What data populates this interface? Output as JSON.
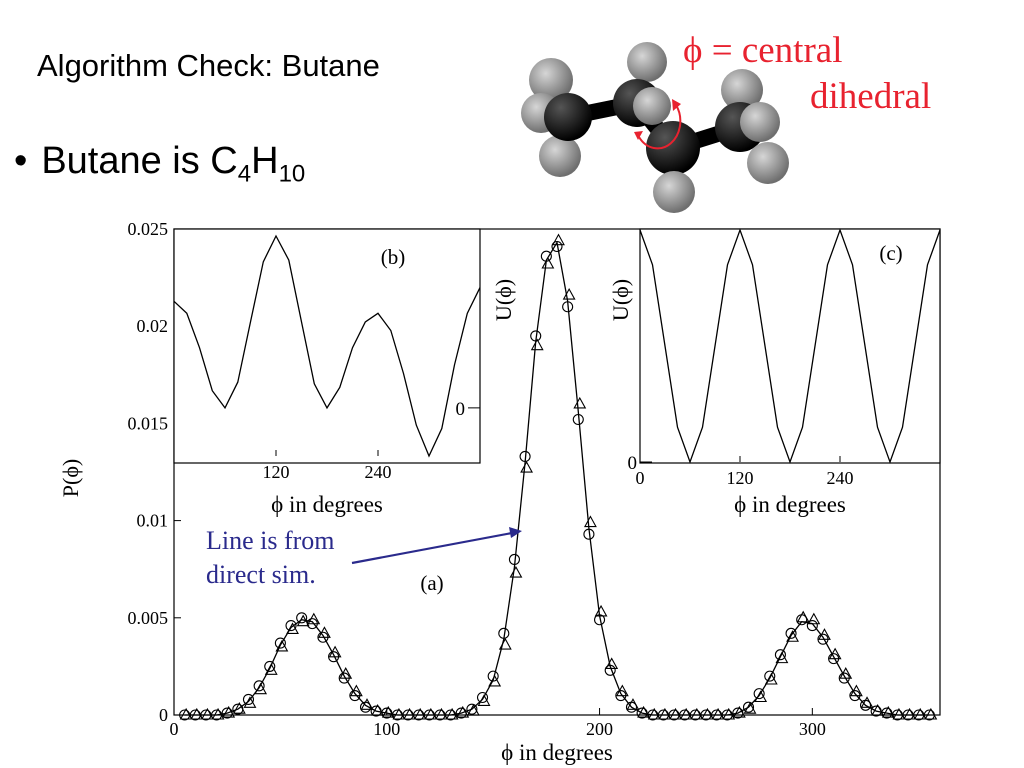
{
  "slide": {
    "title": "Algorithm Check: Butane",
    "bullet_prefix": "Butane is C",
    "sub1": "4",
    "mid": "H",
    "sub2": "10",
    "dihedral_line1": "ϕ = central",
    "dihedral_line2": "dihedral",
    "annotation_line1": "Line is from",
    "annotation_line2": "direct sim."
  },
  "colors": {
    "dihedral_label": "#e8222f",
    "annotation": "#2a2a8c",
    "atom_carbon": "#000000",
    "atom_hydrogen": "#8a8a8a"
  },
  "chart_data": [
    {
      "panel": "a",
      "panel_label": "(a)",
      "type": "scatter",
      "xlabel": "ϕ in degrees",
      "ylabel": "P(ϕ)",
      "xlim": [
        0,
        360
      ],
      "ylim": [
        0,
        0.025
      ],
      "xticks": [
        "0",
        "100",
        "200",
        "300"
      ],
      "yticks": [
        "0",
        "0.005",
        "0.01",
        "0.015",
        "0.02",
        "0.025"
      ],
      "x": [
        5,
        10,
        15,
        20,
        25,
        30,
        35,
        40,
        45,
        50,
        55,
        60,
        65,
        70,
        75,
        80,
        85,
        90,
        95,
        100,
        105,
        110,
        115,
        120,
        125,
        130,
        135,
        140,
        145,
        150,
        155,
        160,
        165,
        170,
        175,
        180,
        185,
        190,
        195,
        200,
        205,
        210,
        215,
        220,
        225,
        230,
        235,
        240,
        245,
        250,
        255,
        260,
        265,
        270,
        275,
        280,
        285,
        290,
        295,
        300,
        305,
        310,
        315,
        320,
        325,
        330,
        335,
        340,
        345,
        350,
        355
      ],
      "series": [
        {
          "marker": "line",
          "values": [
            0,
            0,
            0,
            0,
            0.0001,
            0.0003,
            0.0007,
            0.0014,
            0.0024,
            0.0036,
            0.0045,
            0.0049,
            0.0048,
            0.0041,
            0.0031,
            0.002,
            0.0011,
            0.0005,
            0.0002,
            0.0001,
            0,
            0,
            0,
            0,
            0,
            0,
            0.0001,
            0.0003,
            0.0008,
            0.0018,
            0.0039,
            0.0076,
            0.013,
            0.0192,
            0.0234,
            0.0243,
            0.0213,
            0.0156,
            0.0096,
            0.0051,
            0.0025,
            0.0011,
            0.0004,
            0.0001,
            0,
            0,
            0,
            0,
            0,
            0,
            0,
            0,
            0.0001,
            0.0004,
            0.001,
            0.0019,
            0.003,
            0.0041,
            0.0048,
            0.0047,
            0.004,
            0.003,
            0.002,
            0.0011,
            0.0005,
            0.0002,
            0.0001,
            0,
            0,
            0,
            0
          ]
        },
        {
          "marker": "circle",
          "values": [
            0,
            0,
            0,
            0,
            0.0001,
            0.0003,
            0.0008,
            0.0015,
            0.0025,
            0.0037,
            0.0046,
            0.005,
            0.0047,
            0.004,
            0.003,
            0.0019,
            0.001,
            0.0004,
            0.0002,
            0.0001,
            0,
            0,
            0,
            0,
            0,
            0,
            0.0001,
            0.0003,
            0.0009,
            0.002,
            0.0042,
            0.008,
            0.0133,
            0.0195,
            0.0236,
            0.0241,
            0.021,
            0.0152,
            0.0093,
            0.0049,
            0.0023,
            0.001,
            0.0004,
            0.0001,
            0,
            0,
            0,
            0,
            0,
            0,
            0,
            0,
            0.0001,
            0.0004,
            0.0011,
            0.002,
            0.0031,
            0.0042,
            0.0049,
            0.0046,
            0.0039,
            0.0029,
            0.0019,
            0.001,
            0.0005,
            0.0002,
            0.0001,
            0,
            0,
            0,
            0
          ]
        },
        {
          "marker": "triangle",
          "values": [
            0,
            0,
            0,
            0,
            0.0001,
            0.0003,
            0.0006,
            0.0013,
            0.0023,
            0.0035,
            0.0044,
            0.0048,
            0.0049,
            0.0042,
            0.0032,
            0.0021,
            0.0012,
            0.0005,
            0.0002,
            0.0001,
            0,
            0,
            0,
            0,
            0,
            0,
            0.0001,
            0.0002,
            0.0007,
            0.0017,
            0.0036,
            0.0073,
            0.0127,
            0.019,
            0.0232,
            0.0244,
            0.0216,
            0.016,
            0.0099,
            0.0053,
            0.0026,
            0.0012,
            0.0005,
            0.0001,
            0,
            0,
            0,
            0,
            0,
            0,
            0,
            0,
            0.0001,
            0.0003,
            0.0009,
            0.0018,
            0.0029,
            0.004,
            0.005,
            0.0049,
            0.0041,
            0.0031,
            0.0021,
            0.0012,
            0.0006,
            0.0002,
            0.0001,
            0,
            0,
            0,
            0
          ]
        }
      ]
    },
    {
      "panel": "b",
      "panel_label": "(b)",
      "type": "line",
      "xlabel": "ϕ  in degrees",
      "ylabel": "U(ϕ)",
      "xlim": [
        0,
        360
      ],
      "xticks": [
        "120",
        "240"
      ],
      "yticks": [
        "0"
      ],
      "x": [
        0,
        15,
        30,
        45,
        60,
        75,
        90,
        105,
        120,
        135,
        150,
        165,
        180,
        195,
        210,
        225,
        240,
        255,
        270,
        285,
        300,
        315,
        330,
        345,
        360
      ],
      "series": [
        {
          "values": [
            0.62,
            0.55,
            0.35,
            0.1,
            0,
            0.15,
            0.5,
            0.85,
            1,
            0.86,
            0.5,
            0.14,
            0,
            0.12,
            0.35,
            0.5,
            0.55,
            0.45,
            0.2,
            -0.1,
            -0.28,
            -0.12,
            0.25,
            0.55,
            0.7
          ]
        }
      ]
    },
    {
      "panel": "c",
      "panel_label": "(c)",
      "type": "line",
      "xlabel": "ϕ  in degrees",
      "ylabel": "U(ϕ)",
      "xlim": [
        0,
        360
      ],
      "xticks": [
        "0",
        "120",
        "240"
      ],
      "yticks": [
        "0"
      ],
      "x": [
        0,
        15,
        30,
        45,
        60,
        75,
        90,
        105,
        120,
        135,
        150,
        165,
        180,
        195,
        210,
        225,
        240,
        255,
        270,
        285,
        300,
        315,
        330,
        345,
        360
      ],
      "series": [
        {
          "values": [
            1,
            0.85,
            0.5,
            0.15,
            0,
            0.15,
            0.5,
            0.85,
            1,
            0.85,
            0.5,
            0.15,
            0,
            0.15,
            0.5,
            0.85,
            1,
            0.85,
            0.5,
            0.15,
            0,
            0.15,
            0.5,
            0.85,
            1
          ]
        }
      ]
    }
  ]
}
